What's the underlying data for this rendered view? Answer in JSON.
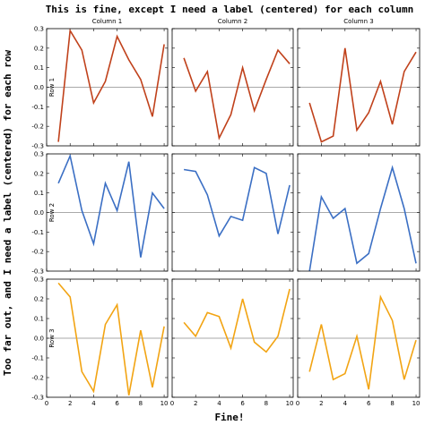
{
  "title": "This is fine, except I need a label (centered) for each column",
  "xlabel": "Fine!",
  "ylabel": "Too far out, and I need a label (centered) for each row",
  "column_labels": [
    "Column 1",
    "Column 2",
    "Column 3"
  ],
  "row_labels": [
    "Row 1",
    "Row 2",
    "Row 3"
  ],
  "row_colors": [
    "#c0411b",
    "#3b6fc4",
    "#f2a413"
  ],
  "chart_data": {
    "type": "line",
    "layout": "3x3 grid",
    "title": "This is fine, except I need a label (centered) for each column",
    "xlabel": "Fine!",
    "ylabel": "Too far out, and I need a label (centered) for each row",
    "xlim": [
      0,
      10.3
    ],
    "ylim": [
      -0.3,
      0.3
    ],
    "xticks": [
      0,
      2,
      4,
      6,
      8,
      10
    ],
    "yticks": [
      -0.3,
      -0.2,
      -0.1,
      0.0,
      0.1,
      0.2,
      0.3
    ],
    "x": [
      1,
      2,
      3,
      4,
      5,
      6,
      7,
      8,
      9,
      10
    ],
    "grid": false,
    "panels": [
      {
        "row": "Row 1",
        "column": "Column 1",
        "color": "#c0411b",
        "values": [
          -0.28,
          0.29,
          0.19,
          -0.08,
          0.03,
          0.26,
          0.14,
          0.04,
          -0.15,
          0.22
        ]
      },
      {
        "row": "Row 1",
        "column": "Column 2",
        "color": "#c0411b",
        "values": [
          0.15,
          -0.02,
          0.08,
          -0.26,
          -0.14,
          0.1,
          -0.12,
          0.04,
          0.19,
          0.12
        ]
      },
      {
        "row": "Row 1",
        "column": "Column 3",
        "color": "#c0411b",
        "values": [
          -0.08,
          -0.28,
          -0.25,
          0.2,
          -0.22,
          -0.13,
          0.03,
          -0.19,
          0.08,
          0.18
        ]
      },
      {
        "row": "Row 2",
        "column": "Column 1",
        "color": "#3b6fc4",
        "values": [
          0.15,
          0.29,
          0.01,
          -0.16,
          0.15,
          0.01,
          0.26,
          -0.23,
          0.1,
          0.02
        ]
      },
      {
        "row": "Row 2",
        "column": "Column 2",
        "color": "#3b6fc4",
        "values": [
          0.22,
          0.21,
          0.09,
          -0.12,
          -0.02,
          -0.04,
          0.23,
          0.2,
          -0.11,
          0.14
        ]
      },
      {
        "row": "Row 2",
        "column": "Column 3",
        "color": "#3b6fc4",
        "values": [
          -0.3,
          0.08,
          -0.03,
          0.02,
          -0.26,
          -0.21,
          0.02,
          0.23,
          0.02,
          -0.26
        ]
      },
      {
        "row": "Row 3",
        "column": "Column 1",
        "color": "#f2a413",
        "values": [
          0.28,
          0.21,
          -0.17,
          -0.27,
          0.07,
          0.17,
          -0.29,
          0.04,
          -0.25,
          0.06
        ]
      },
      {
        "row": "Row 3",
        "column": "Column 2",
        "color": "#f2a413",
        "values": [
          0.08,
          0.01,
          0.13,
          0.11,
          -0.05,
          0.2,
          -0.02,
          -0.07,
          0.01,
          0.25
        ]
      },
      {
        "row": "Row 3",
        "column": "Column 3",
        "color": "#f2a413",
        "values": [
          -0.17,
          0.07,
          -0.21,
          -0.18,
          0.01,
          -0.26,
          0.21,
          0.09,
          -0.21,
          -0.01
        ]
      }
    ]
  }
}
